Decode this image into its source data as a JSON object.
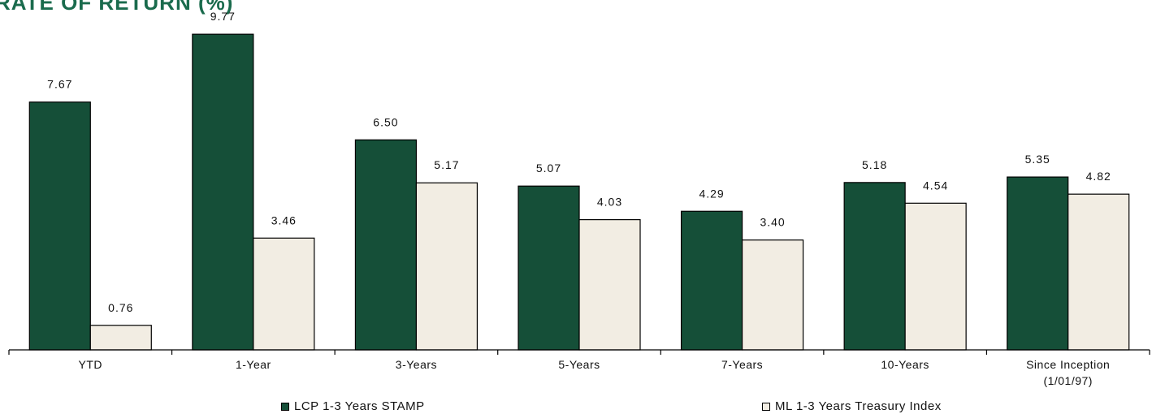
{
  "chart_data": {
    "type": "bar",
    "title": "RATE OF RETURN (%)",
    "categories": [
      "YTD",
      "1-Year",
      "3-Years",
      "5-Years",
      "7-Years",
      "10-Years",
      "Since Inception\n(1/01/97)"
    ],
    "series": [
      {
        "name": "LCP 1-3 Years STAMP",
        "values": [
          7.67,
          9.77,
          6.5,
          5.07,
          4.29,
          5.18,
          5.35
        ],
        "labels": [
          "7.67",
          "9.77",
          "6.50",
          "5.07",
          "4.29",
          "5.18",
          "5.35"
        ],
        "color": "#154f38"
      },
      {
        "name": "ML 1-3 Years Treasury Index",
        "values": [
          0.76,
          3.46,
          5.17,
          4.03,
          3.4,
          4.54,
          4.82
        ],
        "labels": [
          "0.76",
          "3.46",
          "5.17",
          "4.03",
          "3.40",
          "4.54",
          "4.82"
        ],
        "color": "#f2ede3"
      }
    ],
    "ylim": [
      0,
      10
    ],
    "grid": false,
    "legend": "bottom"
  }
}
